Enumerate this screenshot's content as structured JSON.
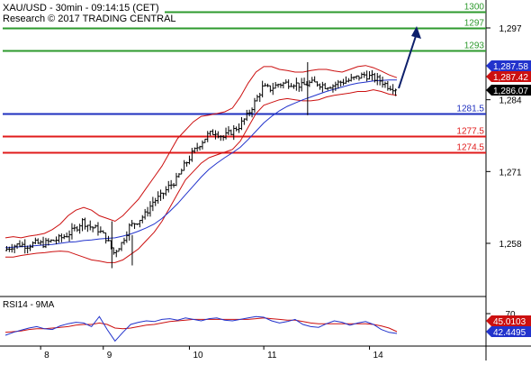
{
  "header": {
    "title": "XAU/USD - 30min - 09:14:15 (CET)",
    "credit": "Research © 2017 TRADING CENTRAL"
  },
  "colors": {
    "resistance": "#2e9a2e",
    "pivot": "#1e2fbf",
    "support": "#e01b1b",
    "candles": "#000000",
    "bollinger": "#cc1010",
    "moving_average": "#2233cc",
    "forecast_arrow": "#0d1f6b",
    "rsi_line": "#2233cc",
    "rsi_ma": "#cc1010",
    "axis": "#000000"
  },
  "chart_data": [
    {
      "type": "candlestick",
      "title": "XAU/USD - 30min",
      "xlabel": "",
      "ylabel": "",
      "x_ticks": [
        "8",
        "9",
        "10",
        "11",
        "14"
      ],
      "y_ticks": [
        "1,297",
        "1,284",
        "1,271",
        "1,258"
      ],
      "ylim": [
        1251.5,
        1299.5
      ],
      "grid": false,
      "levels": [
        {
          "label": "1300",
          "value": 1300,
          "kind": "resistance"
        },
        {
          "label": "1297",
          "value": 1297,
          "kind": "resistance"
        },
        {
          "label": "1293",
          "value": 1293,
          "kind": "resistance"
        },
        {
          "label": "1281.5",
          "value": 1281.5,
          "kind": "pivot"
        },
        {
          "label": "1277.5",
          "value": 1277.5,
          "kind": "support"
        },
        {
          "label": "1274.5",
          "value": 1274.5,
          "kind": "support"
        }
      ],
      "price_tags": [
        {
          "label": "1,287.58",
          "value": 1287.58,
          "color": "#2233cc"
        },
        {
          "label": "1,287.42",
          "value": 1287.42,
          "color": "#cc1010"
        },
        {
          "label": "1,286.07",
          "value": 1286.07,
          "color": "#000000"
        }
      ],
      "series": [
        {
          "name": "",
          "kind": "price",
          "values": [
            1256.7,
            1257.5,
            1257.8,
            1257.6,
            1258.0,
            1257.9,
            1258.4,
            1258.8,
            1259.5,
            1260.5,
            1262.0,
            1261.0,
            1260.5,
            1259.0,
            1256.3,
            1258.0,
            1261.0,
            1262.0,
            1263.2,
            1265.5,
            1266.5,
            1268.2,
            1269.5,
            1272.0,
            1274.2,
            1276.0,
            1277.6,
            1278.2,
            1277.2,
            1278.2,
            1279.2,
            1281.0,
            1283.5,
            1286.2,
            1286.0,
            1286.8,
            1287.0,
            1287.0,
            1286.5,
            1287.0,
            1287.0,
            1286.5,
            1286.6,
            1287.2,
            1287.5,
            1288.0,
            1288.5,
            1288.0,
            1287.5,
            1286.5,
            1286.07
          ],
          "forecast": [
            1286.07,
            1297.0
          ]
        },
        {
          "name": "",
          "kind": "bollinger_upper",
          "values": [
            1259.0,
            1259.2,
            1259.0,
            1259.3,
            1259.5,
            1259.8,
            1260.5,
            1261.5,
            1263.0,
            1264.0,
            1264.5,
            1264.0,
            1263.0,
            1262.5,
            1262.0,
            1263.0,
            1264.5,
            1266.0,
            1268.0,
            1270.0,
            1272.0,
            1274.5,
            1277.0,
            1278.5,
            1280.0,
            1281.0,
            1281.2,
            1281.5,
            1281.8,
            1282.5,
            1284.5,
            1287.0,
            1289.0,
            1290.0,
            1290.0,
            1289.5,
            1289.3,
            1289.0,
            1289.0,
            1289.3,
            1289.5,
            1289.5,
            1289.2,
            1289.0,
            1289.5,
            1290.0,
            1290.2,
            1289.8,
            1289.2,
            1288.5,
            1288.0
          ]
        },
        {
          "name": "",
          "kind": "bollinger_lower",
          "values": [
            1255.5,
            1255.5,
            1255.8,
            1256.0,
            1256.2,
            1256.3,
            1256.5,
            1256.6,
            1256.5,
            1256.0,
            1255.5,
            1255.0,
            1254.8,
            1254.5,
            1254.5,
            1255.0,
            1256.0,
            1257.0,
            1258.5,
            1260.0,
            1262.0,
            1264.5,
            1267.0,
            1269.5,
            1271.0,
            1272.5,
            1273.5,
            1274.0,
            1274.5,
            1275.0,
            1276.5,
            1279.0,
            1281.5,
            1283.0,
            1283.5,
            1284.0,
            1284.2,
            1284.0,
            1283.8,
            1283.8,
            1284.0,
            1284.5,
            1284.8,
            1285.0,
            1285.2,
            1285.5,
            1285.5,
            1285.8,
            1285.5,
            1285.0,
            1284.8
          ]
        },
        {
          "name": "",
          "kind": "moving_average",
          "values": [
            1257.2,
            1257.3,
            1257.4,
            1257.5,
            1257.6,
            1257.7,
            1257.8,
            1258.0,
            1258.2,
            1258.3,
            1258.5,
            1258.6,
            1258.8,
            1258.9,
            1259.0,
            1259.3,
            1259.7,
            1260.2,
            1260.8,
            1261.5,
            1262.5,
            1263.8,
            1265.2,
            1266.8,
            1268.4,
            1270.0,
            1271.4,
            1272.5,
            1273.5,
            1274.4,
            1275.4,
            1276.8,
            1278.3,
            1279.8,
            1281.0,
            1282.0,
            1282.8,
            1283.4,
            1284.0,
            1284.5,
            1285.0,
            1285.5,
            1285.9,
            1286.3,
            1286.7,
            1287.0,
            1287.2,
            1287.4,
            1287.5,
            1287.58,
            1287.58
          ]
        }
      ]
    },
    {
      "type": "line",
      "title": "RSI14 - 9MA",
      "xlabel": "",
      "ylabel": "",
      "y_ticks": [
        "70"
      ],
      "ylim": [
        30,
        75
      ],
      "price_tags": [
        {
          "label": "45.0103",
          "value": 45.0103,
          "color": "#cc1010"
        },
        {
          "label": "42.4495",
          "value": 42.4495,
          "color": "#2233cc"
        }
      ],
      "series": [
        {
          "name": "",
          "kind": "rsi",
          "values": [
            40,
            44,
            47,
            50,
            52,
            49,
            48,
            53,
            56,
            58,
            57,
            52,
            66,
            48,
            32,
            44,
            55,
            58,
            60,
            59,
            62,
            63,
            61,
            64,
            62,
            60,
            63,
            64,
            61,
            60,
            62,
            64,
            66,
            65,
            60,
            57,
            59,
            62,
            55,
            52,
            51,
            56,
            60,
            58,
            54,
            57,
            59,
            55,
            48,
            44,
            42.4495
          ]
        },
        {
          "name": "",
          "kind": "rsi_ma",
          "values": [
            44,
            45,
            46,
            48,
            49,
            49,
            50,
            51,
            52,
            54,
            55,
            55,
            57,
            55,
            50,
            49,
            50,
            52,
            54,
            55,
            57,
            59,
            60,
            61,
            62,
            62,
            62,
            62,
            62,
            62,
            62,
            62,
            63,
            64,
            63,
            62,
            61,
            61,
            59,
            57,
            56,
            56,
            56,
            56,
            56,
            56,
            56,
            55,
            53,
            50,
            45.0103
          ]
        }
      ]
    }
  ]
}
